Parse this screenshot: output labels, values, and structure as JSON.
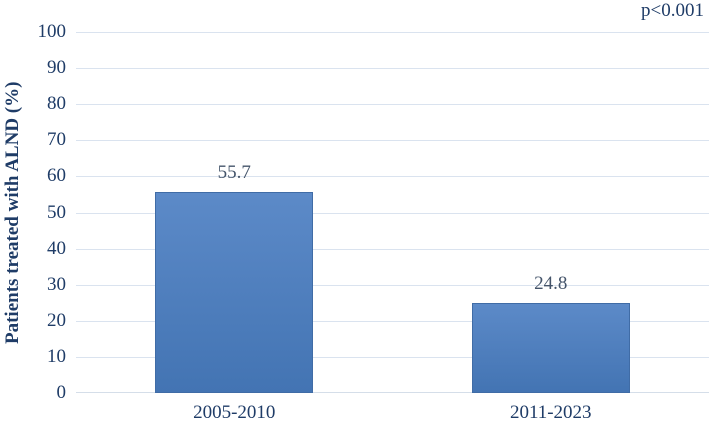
{
  "chart_data": {
    "type": "bar",
    "categories": [
      "2005-2010",
      "2011-2023"
    ],
    "values": [
      55.7,
      24.8
    ],
    "value_labels": [
      "55.7",
      "24.8"
    ],
    "title": "",
    "xlabel": "",
    "ylabel": "Patients treated with ALND (%)",
    "ylim": [
      0,
      100
    ],
    "yticks": [
      0,
      10,
      20,
      30,
      40,
      50,
      60,
      70,
      80,
      90,
      100
    ],
    "grid": true,
    "legend": "none",
    "annotation": "p<0.001",
    "annotation_position": "top-right",
    "colors": {
      "bar_fill_top": "#5C8AC8",
      "bar_fill_bottom": "#4374B3",
      "bar_border": "#406CA6",
      "gridline": "#DAE3EF",
      "baseline": "#D5DEE9",
      "axis_text": "#1F3C67",
      "value_label_text": "#44546A",
      "background": "#FFFFFF"
    }
  }
}
